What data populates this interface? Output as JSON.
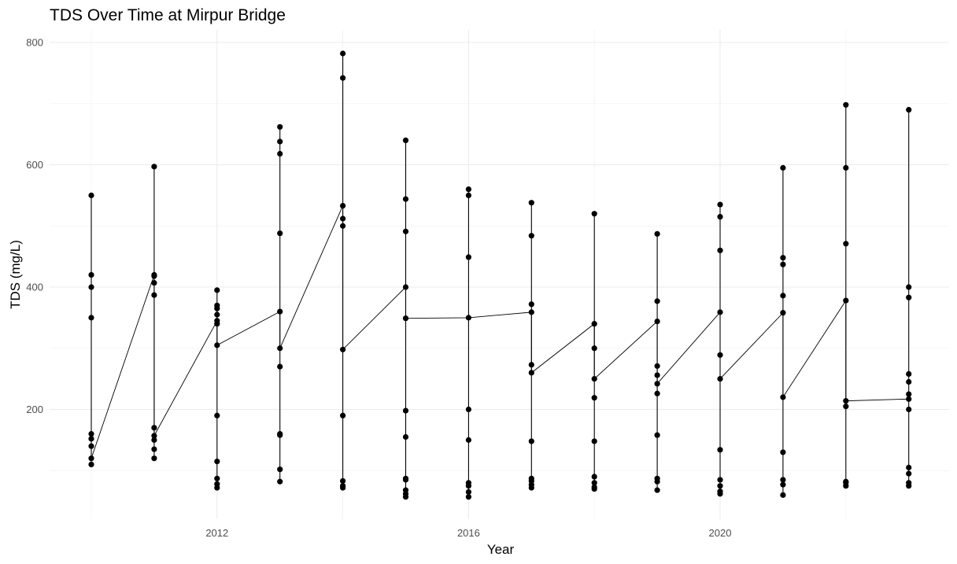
{
  "chart_data": {
    "type": "scatter",
    "title": "TDS Over Time at Mirpur Bridge",
    "xlabel": "Year",
    "ylabel": "TDS (mg/L)",
    "xlim": [
      2009.3,
      2023.6
    ],
    "ylim": [
      55,
      810
    ],
    "x_ticks": [
      2012,
      2016,
      2020
    ],
    "y_ticks": [
      200,
      400,
      600,
      800
    ],
    "x_minor": [
      2010,
      2014,
      2018,
      2022
    ],
    "y_minor": [
      100,
      300,
      500,
      700
    ],
    "grid": true,
    "years": [
      {
        "year": 2010,
        "values": [
          110,
          120,
          140,
          152,
          160,
          350,
          400,
          420,
          550
        ]
      },
      {
        "year": 2011,
        "values": [
          120,
          135,
          150,
          157,
          170,
          387,
          407,
          418,
          420,
          597
        ]
      },
      {
        "year": 2012,
        "values": [
          72,
          78,
          87,
          115,
          190,
          305,
          340,
          345,
          355,
          365,
          370,
          395
        ]
      },
      {
        "year": 2013,
        "values": [
          82,
          102,
          158,
          160,
          270,
          300,
          360,
          488,
          618,
          638,
          662
        ]
      },
      {
        "year": 2014,
        "values": [
          72,
          75,
          83,
          190,
          298,
          500,
          512,
          533,
          742,
          782
        ]
      },
      {
        "year": 2015,
        "values": [
          57,
          62,
          68,
          85,
          87,
          155,
          198,
          349,
          400,
          491,
          544,
          640
        ]
      },
      {
        "year": 2016,
        "values": [
          57,
          65,
          75,
          80,
          150,
          200,
          350,
          449,
          550,
          560
        ]
      },
      {
        "year": 2017,
        "values": [
          72,
          77,
          83,
          87,
          148,
          260,
          273,
          359,
          372,
          484,
          538
        ]
      },
      {
        "year": 2018,
        "values": [
          70,
          73,
          80,
          90,
          148,
          219,
          250,
          300,
          340,
          520
        ]
      },
      {
        "year": 2019,
        "values": [
          68,
          82,
          87,
          158,
          226,
          242,
          256,
          271,
          344,
          377,
          487
        ]
      },
      {
        "year": 2020,
        "values": [
          62,
          66,
          75,
          85,
          134,
          250,
          289,
          359,
          460,
          515,
          535
        ]
      },
      {
        "year": 2021,
        "values": [
          60,
          77,
          85,
          130,
          220,
          358,
          386,
          437,
          448,
          595
        ]
      },
      {
        "year": 2022,
        "values": [
          75,
          80,
          82,
          205,
          214,
          378,
          471,
          595,
          698
        ]
      },
      {
        "year": 2023,
        "values": [
          75,
          80,
          95,
          105,
          200,
          217,
          225,
          245,
          258,
          383,
          400,
          690
        ]
      }
    ],
    "trend_line": [
      [
        2010,
        120
      ],
      [
        2011,
        420
      ],
      [
        2011,
        157
      ],
      [
        2012,
        345
      ],
      [
        2012,
        305
      ],
      [
        2013,
        360
      ],
      [
        2013,
        300
      ],
      [
        2014,
        533
      ],
      [
        2014,
        298
      ],
      [
        2015,
        400
      ],
      [
        2015,
        349
      ],
      [
        2016,
        350
      ],
      [
        2017,
        359
      ],
      [
        2017,
        260
      ],
      [
        2018,
        340
      ],
      [
        2018,
        250
      ],
      [
        2019,
        344
      ],
      [
        2019,
        242
      ],
      [
        2020,
        359
      ],
      [
        2020,
        250
      ],
      [
        2021,
        358
      ],
      [
        2021,
        220
      ],
      [
        2022,
        378
      ],
      [
        2022,
        214
      ],
      [
        2023,
        217
      ]
    ]
  }
}
